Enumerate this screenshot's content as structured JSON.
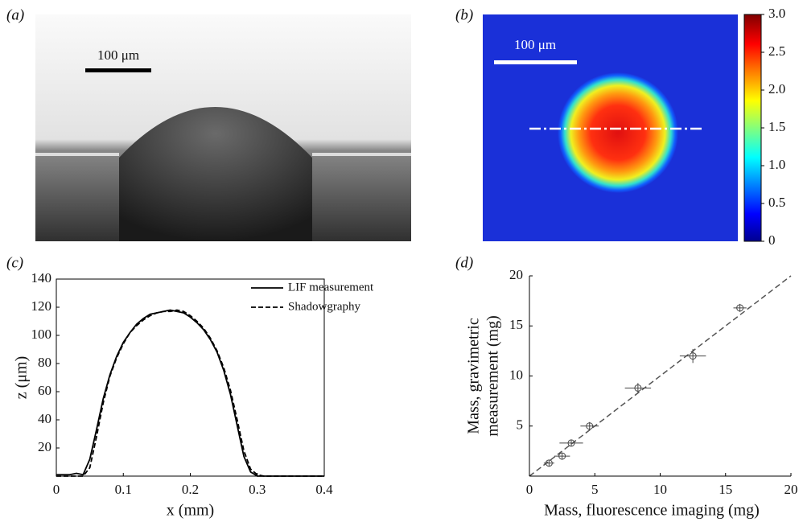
{
  "chart_data": [
    {
      "type": "image",
      "label": "(a)",
      "scale_bar": "100 μm"
    },
    {
      "type": "heatmap",
      "label": "(b)",
      "scale_bar": "100 μm",
      "clim": [
        0,
        3
      ],
      "cticks": [
        0,
        0.5,
        {
          "value": 1,
          "label": "1.0"
        },
        1.5,
        {
          "value": 2,
          "label": "2.0"
        },
        2.5,
        {
          "value": 3,
          "label": "3.0"
        }
      ]
    },
    {
      "type": "line",
      "label": "(c)",
      "x_label": "x (mm)",
      "y_label": "z (μm)",
      "xlim": [
        0,
        0.4
      ],
      "ylim": [
        0,
        140
      ],
      "xticks": [
        0,
        0.1,
        0.2,
        0.3,
        0.4
      ],
      "yticks": [
        20,
        40,
        60,
        80,
        100,
        120,
        140
      ],
      "x": [
        0,
        0.02,
        0.03,
        0.04,
        0.05,
        0.06,
        0.07,
        0.08,
        0.09,
        0.1,
        0.11,
        0.12,
        0.13,
        0.14,
        0.15,
        0.16,
        0.17,
        0.18,
        0.19,
        0.2,
        0.21,
        0.22,
        0.23,
        0.24,
        0.25,
        0.26,
        0.27,
        0.28,
        0.29,
        0.3,
        0.31,
        0.32,
        0.4
      ],
      "series": [
        {
          "name": "LIF measurement",
          "style": "solid",
          "color": "#000000",
          "values": [
            1,
            1,
            2,
            1,
            12,
            33,
            55,
            72,
            85,
            95,
            102,
            108,
            112,
            115,
            116,
            117,
            118,
            117,
            116,
            113,
            109,
            104,
            97,
            88,
            75,
            58,
            36,
            14,
            3,
            0,
            0,
            0,
            0
          ]
        },
        {
          "name": "Shadowgraphy",
          "style": "dashed",
          "color": "#000000",
          "values": [
            0,
            0,
            0,
            0,
            6,
            28,
            52,
            71,
            84,
            94,
            102,
            107,
            111,
            114,
            116,
            117,
            117,
            118,
            117,
            114,
            110,
            105,
            98,
            89,
            77,
            61,
            40,
            18,
            5,
            1,
            0,
            0,
            0
          ]
        }
      ]
    },
    {
      "type": "scatter",
      "label": "(d)",
      "x_label": "Mass, fluorescence imaging (mg)",
      "y_label": [
        "Mass, gravimetric",
        "measurement (mg)"
      ],
      "xlim": [
        0,
        20
      ],
      "ylim": [
        0,
        20
      ],
      "xticks": [
        0,
        5,
        10,
        15,
        20
      ],
      "yticks": [
        5,
        10,
        15,
        20
      ],
      "x": [
        1.5,
        2.5,
        3.2,
        4.6,
        8.3,
        12.5,
        16.1
      ],
      "values": [
        1.3,
        2,
        3.3,
        5,
        8.8,
        12,
        16.8
      ],
      "xerr": [
        0.4,
        0.6,
        0.9,
        0.7,
        1,
        1,
        0.5
      ],
      "yerr": [
        0.3,
        0.3,
        0.3,
        0.4,
        0.5,
        0.7,
        0.4
      ],
      "color": "#444444"
    }
  ]
}
